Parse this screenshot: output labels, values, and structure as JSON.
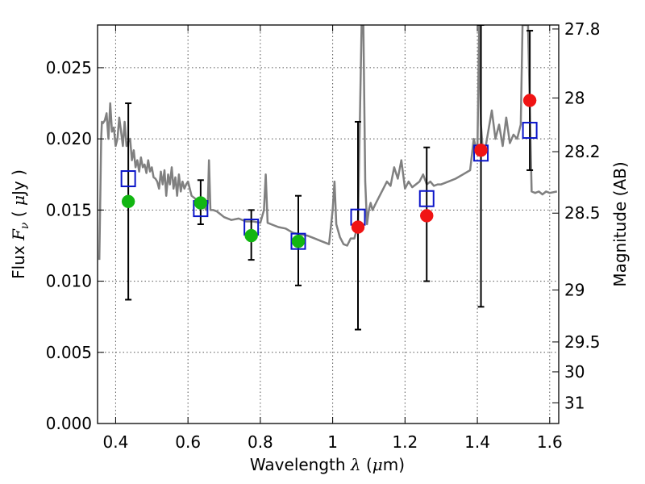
{
  "chart_data": {
    "type": "scatter",
    "xlabel": {
      "prefix": "Wavelength  ",
      "symbol": "λ",
      "suffix_open": " (",
      "unit_symbol": "μ",
      "unit_rest": "m)"
    },
    "ylabel": {
      "prefix": "Flux  ",
      "symbol": "F",
      "subscript": "ν",
      "suffix_open": "  ( ",
      "unit_symbol": "μ",
      "unit_rest": "Jy )"
    },
    "y2label": "Magnitude (AB)",
    "xlim": [
      0.35,
      1.625
    ],
    "ylim": [
      0.0,
      0.028
    ],
    "grid": true,
    "xticks": [
      {
        "value": 0.4,
        "label": "0.4"
      },
      {
        "value": 0.6,
        "label": "0.6"
      },
      {
        "value": 0.8,
        "label": "0.8"
      },
      {
        "value": 1.0,
        "label": "1"
      },
      {
        "value": 1.2,
        "label": "1.2"
      },
      {
        "value": 1.4,
        "label": "1.4"
      },
      {
        "value": 1.6,
        "label": "1.6"
      }
    ],
    "yticks": [
      {
        "value": 0.0,
        "label": "0.000"
      },
      {
        "value": 0.005,
        "label": "0.005"
      },
      {
        "value": 0.01,
        "label": "0.010"
      },
      {
        "value": 0.015,
        "label": "0.015"
      },
      {
        "value": 0.02,
        "label": "0.020"
      },
      {
        "value": 0.025,
        "label": "0.025"
      }
    ],
    "y2ticks": [
      {
        "flux": 0.02772,
        "label": "27.8"
      },
      {
        "flux": 0.02287,
        "label": "28"
      },
      {
        "flux": 0.0191,
        "label": "28.2"
      },
      {
        "flux": 0.01478,
        "label": "28.5"
      },
      {
        "flux": 0.00938,
        "label": "29"
      },
      {
        "flux": 0.00573,
        "label": "29.5"
      },
      {
        "flux": 0.00363,
        "label": "30"
      },
      {
        "flux": 0.00145,
        "label": "31"
      }
    ],
    "colors": {
      "model": "#808080",
      "measured_optical": "#12b612",
      "measured_nir": "#f01414",
      "model_photometry": "#0a14c8",
      "errorbar": "#000000",
      "grid": "#555555"
    },
    "series": [
      {
        "kind": "model_spectrum",
        "x": [
          0.355,
          0.36,
          0.362,
          0.365,
          0.37,
          0.375,
          0.38,
          0.385,
          0.39,
          0.395,
          0.4,
          0.405,
          0.41,
          0.415,
          0.42,
          0.425,
          0.43,
          0.435,
          0.44,
          0.445,
          0.45,
          0.455,
          0.46,
          0.465,
          0.47,
          0.475,
          0.48,
          0.485,
          0.49,
          0.495,
          0.5,
          0.505,
          0.51,
          0.515,
          0.52,
          0.525,
          0.53,
          0.535,
          0.54,
          0.545,
          0.55,
          0.555,
          0.56,
          0.565,
          0.57,
          0.575,
          0.58,
          0.585,
          0.59,
          0.595,
          0.6,
          0.61,
          0.62,
          0.63,
          0.64,
          0.65,
          0.655,
          0.658,
          0.662,
          0.67,
          0.68,
          0.69,
          0.7,
          0.72,
          0.74,
          0.76,
          0.78,
          0.8,
          0.81,
          0.815,
          0.82,
          0.83,
          0.85,
          0.87,
          0.89,
          0.91,
          0.93,
          0.95,
          0.97,
          0.99,
          1.0,
          1.005,
          1.01,
          1.02,
          1.03,
          1.04,
          1.05,
          1.06,
          1.07,
          1.08,
          1.085,
          1.09,
          1.095,
          1.1,
          1.105,
          1.11,
          1.12,
          1.13,
          1.14,
          1.15,
          1.16,
          1.17,
          1.18,
          1.19,
          1.2,
          1.21,
          1.22,
          1.23,
          1.24,
          1.25,
          1.26,
          1.27,
          1.28,
          1.29,
          1.3,
          1.32,
          1.34,
          1.36,
          1.38,
          1.39,
          1.4,
          1.405,
          1.41,
          1.415,
          1.42,
          1.43,
          1.44,
          1.45,
          1.46,
          1.47,
          1.48,
          1.49,
          1.5,
          1.51,
          1.52,
          1.525,
          1.53,
          1.54,
          1.55,
          1.56,
          1.57,
          1.58,
          1.59,
          1.6,
          1.62
        ],
        "y": [
          0.0115,
          0.02,
          0.0212,
          0.0211,
          0.0213,
          0.0218,
          0.02,
          0.0225,
          0.0205,
          0.0208,
          0.0195,
          0.02,
          0.0215,
          0.0205,
          0.0195,
          0.0212,
          0.0195,
          0.0198,
          0.02,
          0.0185,
          0.0192,
          0.018,
          0.0185,
          0.0177,
          0.0187,
          0.018,
          0.0182,
          0.0176,
          0.0185,
          0.0177,
          0.018,
          0.0173,
          0.0172,
          0.017,
          0.0165,
          0.0177,
          0.0168,
          0.0178,
          0.016,
          0.0175,
          0.0168,
          0.018,
          0.0165,
          0.0173,
          0.016,
          0.0175,
          0.0163,
          0.017,
          0.0165,
          0.0168,
          0.017,
          0.016,
          0.0158,
          0.0152,
          0.0155,
          0.015,
          0.0155,
          0.0185,
          0.015,
          0.015,
          0.0149,
          0.0147,
          0.0145,
          0.0143,
          0.0144,
          0.0142,
          0.0142,
          0.0141,
          0.015,
          0.0175,
          0.0141,
          0.014,
          0.0138,
          0.0137,
          0.0134,
          0.0133,
          0.0132,
          0.013,
          0.0128,
          0.0126,
          0.015,
          0.017,
          0.014,
          0.0131,
          0.0126,
          0.0125,
          0.013,
          0.013,
          0.014,
          0.028,
          0.028,
          0.017,
          0.014,
          0.015,
          0.0155,
          0.015,
          0.0155,
          0.016,
          0.0165,
          0.017,
          0.0167,
          0.018,
          0.0172,
          0.0185,
          0.0165,
          0.017,
          0.0166,
          0.0168,
          0.017,
          0.0175,
          0.0168,
          0.017,
          0.0167,
          0.0168,
          0.0168,
          0.017,
          0.0172,
          0.0175,
          0.0178,
          0.02,
          0.019,
          0.028,
          0.021,
          0.0192,
          0.019,
          0.0205,
          0.022,
          0.02,
          0.021,
          0.0195,
          0.0215,
          0.0197,
          0.0203,
          0.02,
          0.021,
          0.028,
          0.028,
          0.028,
          0.0163,
          0.0162,
          0.0163,
          0.0161,
          0.0163,
          0.0162,
          0.0163
        ]
      },
      {
        "kind": "errorbars",
        "x": [
          0.435,
          0.635,
          0.775,
          0.905,
          1.07,
          1.26,
          1.41,
          1.545
        ],
        "y_low": [
          0.0087,
          0.014,
          0.0115,
          0.0097,
          0.0066,
          0.01,
          0.0082,
          0.0178
        ],
        "y_high": [
          0.0225,
          0.0171,
          0.015,
          0.016,
          0.0212,
          0.0194,
          0.028,
          0.0276
        ]
      },
      {
        "kind": "model_photometry",
        "x": [
          0.435,
          0.635,
          0.775,
          0.905,
          1.07,
          1.26,
          1.41,
          1.545
        ],
        "y": [
          0.0172,
          0.0151,
          0.0138,
          0.0128,
          0.0145,
          0.0158,
          0.019,
          0.0206
        ]
      },
      {
        "kind": "measured_optical",
        "x": [
          0.435,
          0.635,
          0.775,
          0.905
        ],
        "y": [
          0.0156,
          0.0155,
          0.0132,
          0.0128
        ]
      },
      {
        "kind": "measured_nir",
        "x": [
          1.07,
          1.26,
          1.41,
          1.545
        ],
        "y": [
          0.0138,
          0.0146,
          0.0192,
          0.0227
        ]
      }
    ]
  }
}
